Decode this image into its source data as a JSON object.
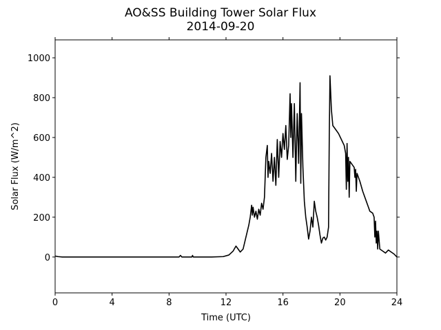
{
  "chart_data": {
    "type": "line",
    "title": "AO&SS Building Tower Solar Flux",
    "subtitle": "2014-09-20",
    "x_label": "Time (UTC)",
    "y_label": "Solar Flux (W/m^2)",
    "xlim": [
      0,
      24
    ],
    "xticks": [
      0,
      4,
      8,
      12,
      16,
      20,
      24
    ],
    "ylim": [
      -180,
      1090
    ],
    "yticks": [
      0,
      200,
      400,
      600,
      800,
      1000
    ],
    "series": [
      {
        "color": "#000000",
        "x": [
          0,
          0.2,
          0.5,
          1,
          8.7,
          8.8,
          8.9,
          9.6,
          9.65,
          9.7,
          11,
          11.8,
          12.2,
          12.5,
          12.7,
          12.85,
          13.0,
          13.2,
          13.4,
          13.6,
          13.7,
          13.8,
          13.85,
          13.9,
          14.0,
          14.1,
          14.2,
          14.3,
          14.4,
          14.5,
          14.6,
          14.7,
          14.8,
          14.9,
          14.95,
          15.0,
          15.1,
          15.2,
          15.3,
          15.4,
          15.5,
          15.6,
          15.7,
          15.8,
          15.9,
          16.0,
          16.1,
          16.2,
          16.3,
          16.4,
          16.5,
          16.55,
          16.6,
          16.7,
          16.8,
          16.9,
          16.95,
          17.0,
          17.1,
          17.2,
          17.25,
          17.3,
          17.4,
          17.5,
          17.6,
          17.7,
          17.8,
          17.9,
          18.0,
          18.1,
          18.2,
          18.3,
          18.4,
          18.5,
          18.6,
          18.7,
          18.8,
          18.9,
          19.0,
          19.1,
          19.2,
          19.25,
          19.3,
          19.4,
          19.5,
          19.7,
          19.9,
          20.1,
          20.3,
          20.4,
          20.45,
          20.5,
          20.55,
          20.6,
          20.65,
          20.7,
          20.9,
          21.0,
          21.05,
          21.1,
          21.15,
          21.2,
          21.4,
          21.6,
          21.8,
          22.0,
          22.1,
          22.3,
          22.4,
          22.45,
          22.5,
          22.55,
          22.6,
          22.65,
          22.7,
          22.8,
          23.0,
          23.2,
          23.4,
          23.6,
          23.8,
          24.0
        ],
        "values": [
          5,
          2,
          0,
          0,
          0,
          8,
          0,
          0,
          8,
          0,
          0,
          2,
          10,
          30,
          55,
          40,
          25,
          40,
          100,
          160,
          200,
          260,
          210,
          250,
          200,
          230,
          190,
          240,
          210,
          270,
          240,
          300,
          500,
          560,
          400,
          480,
          420,
          520,
          380,
          500,
          360,
          590,
          400,
          580,
          500,
          620,
          540,
          660,
          490,
          560,
          820,
          600,
          770,
          500,
          770,
          380,
          570,
          720,
          470,
          875,
          370,
          720,
          450,
          280,
          200,
          150,
          90,
          130,
          200,
          150,
          280,
          230,
          200,
          160,
          110,
          70,
          95,
          100,
          85,
          100,
          150,
          600,
          910,
          740,
          660,
          640,
          620,
          590,
          560,
          520,
          340,
          570,
          380,
          500,
          300,
          480,
          460,
          450,
          400,
          440,
          330,
          420,
          380,
          330,
          290,
          250,
          230,
          220,
          200,
          100,
          180,
          70,
          130,
          40,
          130,
          40,
          30,
          20,
          35,
          25,
          15,
          0
        ]
      }
    ]
  }
}
